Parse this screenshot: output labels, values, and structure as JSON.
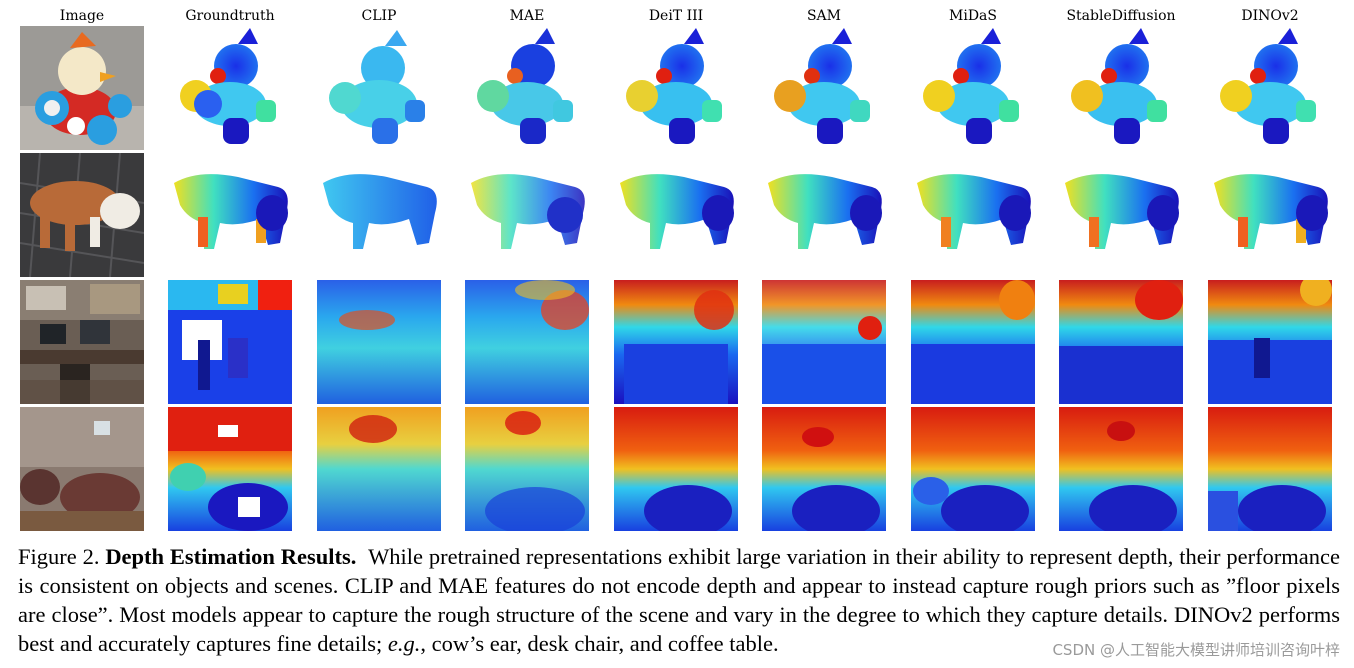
{
  "figure": {
    "columns": [
      "Image",
      "Groundtruth",
      "CLIP",
      "MAE",
      "DeiT III",
      "SAM",
      "MiDaS",
      "StableDiffusion",
      "DINOv2"
    ],
    "rows": [
      {
        "subject": "toy duck car",
        "kind": "object"
      },
      {
        "subject": "toy cow",
        "kind": "object"
      },
      {
        "subject": "office desk scene",
        "kind": "scene"
      },
      {
        "subject": "living room scene",
        "kind": "scene"
      }
    ],
    "colormap": {
      "near": "#1a00c8",
      "mid": "#28d0f0",
      "far": "#e01400"
    }
  },
  "caption": {
    "label": "Figure 2.",
    "title": "Depth Estimation Results.",
    "body_1": "While pretrained representations exhibit large variation in their ability to represent depth, their performance is consistent on objects and scenes. CLIP and MAE features do not encode depth and appear to instead capture rough priors such as ”floor pixels are close”. Most models appear to capture the rough structure of the scene and vary in the degree to which they capture details. DINOv2 performs best and accurately captures fine details;",
    "eg": "e.g.",
    "body_2": ", cow’s ear, desk chair, and coffee table."
  },
  "watermark": "CSDN @人工智能大模型讲师培训咨询叶梓"
}
